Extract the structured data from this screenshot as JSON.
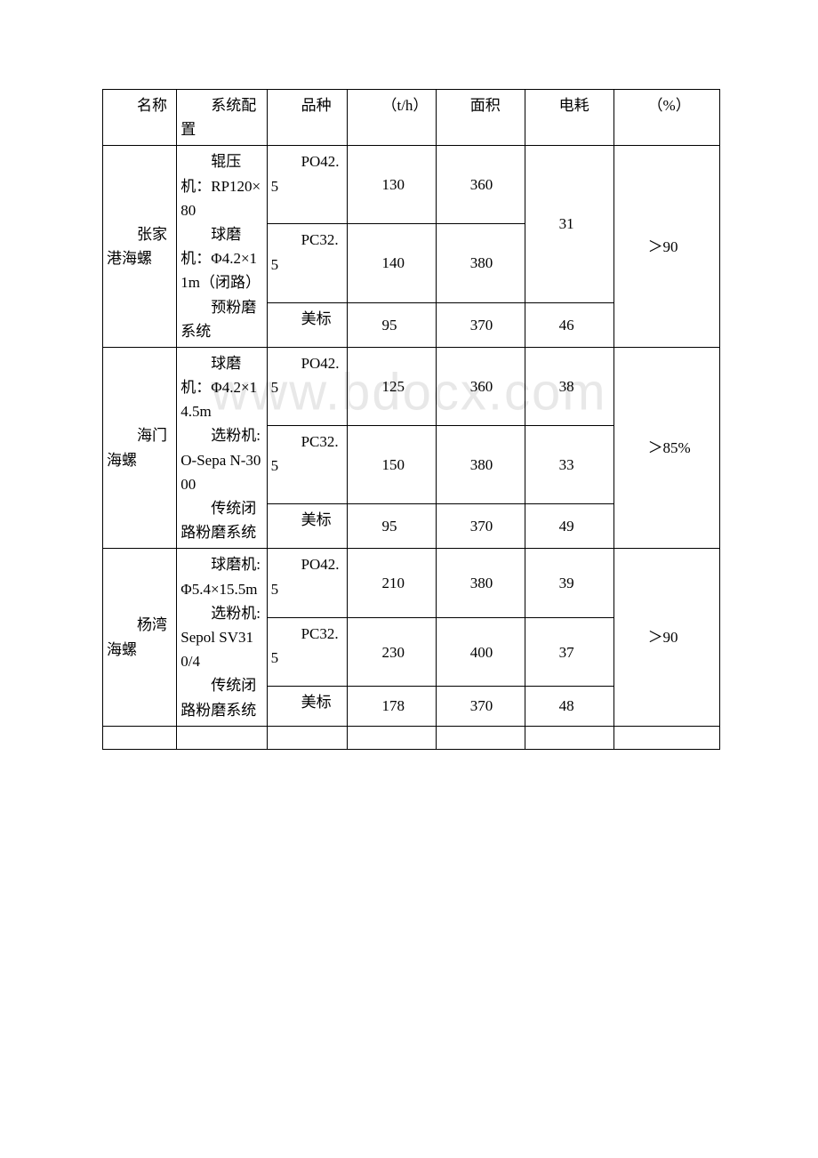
{
  "watermark": "www.bdocx.com",
  "header": {
    "col1": "名称",
    "col2": "系统配置",
    "col3": "品种",
    "col4": "（t/h）",
    "col5": "面积",
    "col6": "电耗",
    "col7": "（%）"
  },
  "rows": [
    {
      "name": "张家港海螺",
      "system": [
        "辊压机：RP120×80",
        "球磨机：Φ4.2×11m（闭路）",
        "预粉磨系统"
      ],
      "sub": [
        {
          "pz": "PO42.5",
          "th": "130",
          "mj": "360",
          "dh": "31",
          "dh_span": 2
        },
        {
          "pz": "PC32.5",
          "th": "140",
          "mj": "380"
        },
        {
          "pz": "美标",
          "th": "95",
          "mj": "370",
          "dh": "46"
        }
      ],
      "pct": "＞90"
    },
    {
      "name": "海门海螺",
      "system": [
        "球磨机：Φ4.2×14.5m",
        "选粉机:O-Sepa N-3000",
        "传统闭路粉磨系统"
      ],
      "sub": [
        {
          "pz": "PO42.5",
          "th": "125",
          "mj": "360",
          "dh": "38"
        },
        {
          "pz": "PC32.5",
          "th": "150",
          "mj": "380",
          "dh": "33"
        },
        {
          "pz": "美标",
          "th": "95",
          "mj": "370",
          "dh": "49"
        }
      ],
      "pct": "＞85%"
    },
    {
      "name": "杨湾海螺",
      "system": [
        "球磨机:Φ5.4×15.5m",
        "选粉机:Sepol SV310/4",
        "传统闭路粉磨系统"
      ],
      "sub": [
        {
          "pz": "PO42.5",
          "th": "210",
          "mj": "380",
          "dh": "39"
        },
        {
          "pz": "PC32.5",
          "th": "230",
          "mj": "400",
          "dh": "37"
        },
        {
          "pz": "美标",
          "th": "178",
          "mj": "370",
          "dh": "48"
        }
      ],
      "pct": "＞90"
    }
  ]
}
